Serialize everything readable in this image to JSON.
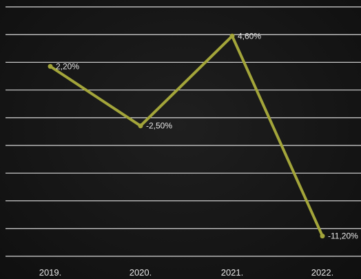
{
  "chart_data": {
    "type": "line",
    "title": "",
    "xlabel": "",
    "ylabel": "",
    "categories": [
      "2019.",
      "2020.",
      "2021.",
      "2022."
    ],
    "series": [
      {
        "values": [
          2.2,
          -2.5,
          4.6,
          -11.2
        ],
        "labels": [
          "2,20%",
          "-2,50%",
          "4,60%",
          "-11,20%"
        ]
      }
    ],
    "ylim": [
      -12.8,
      6.9
    ],
    "grid": true,
    "legend": "none"
  },
  "colors": {
    "background": "#151515",
    "line": "#a3a53a",
    "grid": "#d9d9d9",
    "text": "#e6e6e6"
  }
}
